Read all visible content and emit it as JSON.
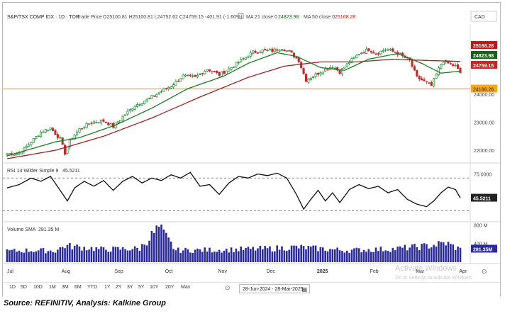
{
  "header": {
    "symbol_text": "S&P/TSX COMP IDX · 1D · TOR",
    "price_type": "Trade Price",
    "ohlc": "O25100.81  H25100.81  L24752.62  C24759.15  -401.91 (-1.60%)",
    "ma21_label": "MA 21 close 0",
    "ma21_value": "24823.98",
    "ma50_label": "MA 50 close 0",
    "ma50_value": "25168.28",
    "currency": "CAD"
  },
  "price_axis": {
    "ticks": [
      "24000.00",
      "23000.00",
      "22000.00"
    ],
    "hline_value": 24188.26,
    "hline_label": "24188.26",
    "last_labels": [
      {
        "text": "25168.28",
        "color": "#b71c1c",
        "value": 25168.28
      },
      {
        "text": "24823.98",
        "color": "#1b5e20",
        "value": 24823.98
      },
      {
        "text": "24759.15",
        "color": "#c62828",
        "value": 24759.15
      }
    ],
    "ylim": [
      21700,
      26500
    ]
  },
  "rsi": {
    "label": "RSI 14 Wilder Simple 9",
    "value": "45.5211",
    "ticks": [
      "75.0000"
    ],
    "ylim": [
      20,
      85
    ],
    "upper": 70,
    "lower": 30
  },
  "volume": {
    "label": "Volume SMA",
    "value": "281.35 M",
    "value_label": "281.35M",
    "ticks": [
      "800 M",
      "400 M"
    ],
    "ylim": [
      0,
      820
    ]
  },
  "x_axis": {
    "months": [
      "Jul",
      "Aug",
      "Sep",
      "Oct",
      "Nov",
      "Dec",
      "2025",
      "Feb",
      "Mar",
      "Apr"
    ],
    "month_idx": [
      0,
      24,
      46,
      67,
      89,
      109,
      130,
      152,
      171,
      189
    ]
  },
  "bottom": {
    "ranges": [
      "1D",
      "5D",
      "10D",
      "1M",
      "3M",
      "6M",
      "YTD",
      "1Y",
      "2Y",
      "3Y",
      "5Y",
      "10Y",
      "20Y",
      "Max"
    ],
    "date_range": "28-Jun-2024 - 28-Mar-2025"
  },
  "source": "Source: REFINITIV, Analysis: Kalkine Group",
  "watermark": {
    "title": "Activate Windows",
    "sub": "Go to Settings to activate Windows."
  },
  "colors": {
    "up": "#1b8a2e",
    "down": "#c62828",
    "ma21": "#1e7b24",
    "ma50": "#a02222",
    "hline": "#f5a623",
    "volume": "#2a2a9a",
    "rsi": "#111111"
  },
  "chart_data": {
    "type": "line",
    "title": "S&P/TSX COMP IDX",
    "x_range": [
      "28-Jun-2024",
      "28-Mar-2025"
    ],
    "close_anchors": [
      {
        "i": 0,
        "v": 21875
      },
      {
        "i": 5,
        "v": 21900
      },
      {
        "i": 10,
        "v": 22300
      },
      {
        "i": 14,
        "v": 22650
      },
      {
        "i": 18,
        "v": 22800
      },
      {
        "i": 22,
        "v": 22400
      },
      {
        "i": 24,
        "v": 21900
      },
      {
        "i": 26,
        "v": 22350
      },
      {
        "i": 30,
        "v": 22750
      },
      {
        "i": 35,
        "v": 23000
      },
      {
        "i": 40,
        "v": 23050
      },
      {
        "i": 44,
        "v": 22850
      },
      {
        "i": 48,
        "v": 23200
      },
      {
        "i": 53,
        "v": 23600
      },
      {
        "i": 58,
        "v": 23800
      },
      {
        "i": 63,
        "v": 24050
      },
      {
        "i": 68,
        "v": 24300
      },
      {
        "i": 73,
        "v": 24650
      },
      {
        "i": 78,
        "v": 24600
      },
      {
        "i": 83,
        "v": 24900
      },
      {
        "i": 88,
        "v": 24700
      },
      {
        "i": 92,
        "v": 24900
      },
      {
        "i": 97,
        "v": 25200
      },
      {
        "i": 102,
        "v": 25500
      },
      {
        "i": 106,
        "v": 25550
      },
      {
        "i": 110,
        "v": 25550
      },
      {
        "i": 114,
        "v": 25650
      },
      {
        "i": 118,
        "v": 25450
      },
      {
        "i": 121,
        "v": 25200
      },
      {
        "i": 124,
        "v": 24500
      },
      {
        "i": 127,
        "v": 24650
      },
      {
        "i": 131,
        "v": 24850
      },
      {
        "i": 135,
        "v": 25000
      },
      {
        "i": 138,
        "v": 24800
      },
      {
        "i": 142,
        "v": 25150
      },
      {
        "i": 146,
        "v": 25450
      },
      {
        "i": 150,
        "v": 25600
      },
      {
        "i": 153,
        "v": 25450
      },
      {
        "i": 157,
        "v": 25600
      },
      {
        "i": 161,
        "v": 25500
      },
      {
        "i": 164,
        "v": 25350
      },
      {
        "i": 167,
        "v": 25200
      },
      {
        "i": 170,
        "v": 24600
      },
      {
        "i": 173,
        "v": 24450
      },
      {
        "i": 176,
        "v": 24300
      },
      {
        "i": 179,
        "v": 24900
      },
      {
        "i": 181,
        "v": 25200
      },
      {
        "i": 183,
        "v": 25100
      },
      {
        "i": 186,
        "v": 25000
      },
      {
        "i": 188,
        "v": 24759.15
      }
    ],
    "ma21_anchors": [
      {
        "i": 0,
        "v": 21800
      },
      {
        "i": 20,
        "v": 22300
      },
      {
        "i": 30,
        "v": 22450
      },
      {
        "i": 45,
        "v": 22900
      },
      {
        "i": 60,
        "v": 23500
      },
      {
        "i": 75,
        "v": 24200
      },
      {
        "i": 90,
        "v": 24650
      },
      {
        "i": 100,
        "v": 25100
      },
      {
        "i": 112,
        "v": 25480
      },
      {
        "i": 120,
        "v": 25350
      },
      {
        "i": 130,
        "v": 24950
      },
      {
        "i": 140,
        "v": 24850
      },
      {
        "i": 150,
        "v": 25250
      },
      {
        "i": 162,
        "v": 25450
      },
      {
        "i": 172,
        "v": 25100
      },
      {
        "i": 180,
        "v": 24750
      },
      {
        "i": 188,
        "v": 24823.98
      }
    ],
    "ma50_anchors": [
      {
        "i": 0,
        "v": 21700
      },
      {
        "i": 20,
        "v": 22000
      },
      {
        "i": 40,
        "v": 22500
      },
      {
        "i": 60,
        "v": 23150
      },
      {
        "i": 80,
        "v": 23900
      },
      {
        "i": 100,
        "v": 24600
      },
      {
        "i": 115,
        "v": 25000
      },
      {
        "i": 130,
        "v": 25150
      },
      {
        "i": 145,
        "v": 25150
      },
      {
        "i": 160,
        "v": 25250
      },
      {
        "i": 175,
        "v": 25200
      },
      {
        "i": 188,
        "v": 25168.28
      }
    ],
    "rsi_anchors": [
      {
        "i": 0,
        "v": 58
      },
      {
        "i": 5,
        "v": 62
      },
      {
        "i": 10,
        "v": 70
      },
      {
        "i": 14,
        "v": 66
      },
      {
        "i": 18,
        "v": 72
      },
      {
        "i": 22,
        "v": 55
      },
      {
        "i": 25,
        "v": 42
      },
      {
        "i": 28,
        "v": 58
      },
      {
        "i": 32,
        "v": 66
      },
      {
        "i": 36,
        "v": 60
      },
      {
        "i": 40,
        "v": 67
      },
      {
        "i": 44,
        "v": 55
      },
      {
        "i": 48,
        "v": 66
      },
      {
        "i": 52,
        "v": 72
      },
      {
        "i": 56,
        "v": 64
      },
      {
        "i": 60,
        "v": 70
      },
      {
        "i": 64,
        "v": 67
      },
      {
        "i": 68,
        "v": 74
      },
      {
        "i": 72,
        "v": 70
      },
      {
        "i": 76,
        "v": 77
      },
      {
        "i": 80,
        "v": 60
      },
      {
        "i": 84,
        "v": 62
      },
      {
        "i": 88,
        "v": 50
      },
      {
        "i": 92,
        "v": 64
      },
      {
        "i": 96,
        "v": 72
      },
      {
        "i": 100,
        "v": 70
      },
      {
        "i": 104,
        "v": 75
      },
      {
        "i": 108,
        "v": 73
      },
      {
        "i": 112,
        "v": 76
      },
      {
        "i": 116,
        "v": 70
      },
      {
        "i": 120,
        "v": 50
      },
      {
        "i": 123,
        "v": 32
      },
      {
        "i": 126,
        "v": 44
      },
      {
        "i": 129,
        "v": 55
      },
      {
        "i": 132,
        "v": 42
      },
      {
        "i": 135,
        "v": 52
      },
      {
        "i": 138,
        "v": 40
      },
      {
        "i": 142,
        "v": 56
      },
      {
        "i": 146,
        "v": 62
      },
      {
        "i": 150,
        "v": 57
      },
      {
        "i": 154,
        "v": 60
      },
      {
        "i": 158,
        "v": 52
      },
      {
        "i": 162,
        "v": 56
      },
      {
        "i": 166,
        "v": 44
      },
      {
        "i": 170,
        "v": 38
      },
      {
        "i": 174,
        "v": 35
      },
      {
        "i": 177,
        "v": 42
      },
      {
        "i": 180,
        "v": 52
      },
      {
        "i": 183,
        "v": 59
      },
      {
        "i": 186,
        "v": 56
      },
      {
        "i": 188,
        "v": 45.52
      }
    ],
    "volume_anchors": [
      {
        "i": 0,
        "v": 240
      },
      {
        "i": 10,
        "v": 260
      },
      {
        "i": 20,
        "v": 250
      },
      {
        "i": 24,
        "v": 360
      },
      {
        "i": 40,
        "v": 280
      },
      {
        "i": 55,
        "v": 300
      },
      {
        "i": 63,
        "v": 760
      },
      {
        "i": 70,
        "v": 260
      },
      {
        "i": 90,
        "v": 270
      },
      {
        "i": 110,
        "v": 300
      },
      {
        "i": 120,
        "v": 330
      },
      {
        "i": 140,
        "v": 260
      },
      {
        "i": 160,
        "v": 290
      },
      {
        "i": 175,
        "v": 360
      },
      {
        "i": 182,
        "v": 420
      },
      {
        "i": 188,
        "v": 281.35
      }
    ],
    "n_days": 189
  }
}
